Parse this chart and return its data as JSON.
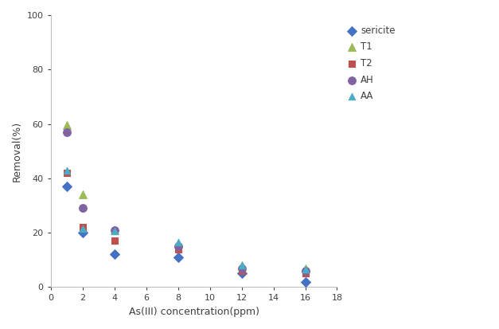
{
  "series": {
    "sericite": {
      "x": [
        1,
        2,
        4,
        8,
        12,
        16
      ],
      "y": [
        37,
        20,
        12,
        11,
        5,
        2
      ],
      "color": "#4472C4",
      "marker": "D",
      "markersize": 6,
      "label": "sericite"
    },
    "T1": {
      "x": [
        1,
        2,
        4,
        8,
        12,
        16
      ],
      "y": [
        59.5,
        34,
        21,
        16,
        8,
        7
      ],
      "color": "#9BBB59",
      "marker": "^",
      "markersize": 7,
      "label": "T1"
    },
    "T2": {
      "x": [
        1,
        2,
        4,
        8,
        12,
        16
      ],
      "y": [
        42,
        22,
        17,
        14,
        6,
        5
      ],
      "color": "#C0504D",
      "marker": "s",
      "markersize": 6,
      "label": "T2"
    },
    "AH": {
      "x": [
        1,
        2,
        4,
        8,
        12,
        16
      ],
      "y": [
        57,
        29,
        21,
        15,
        7,
        6
      ],
      "color": "#8064A2",
      "marker": "o",
      "markersize": 7,
      "label": "AH"
    },
    "AA": {
      "x": [
        1,
        2,
        4,
        8,
        12,
        16
      ],
      "y": [
        43,
        21.5,
        20.5,
        16.5,
        8,
        6.5
      ],
      "color": "#4BACC6",
      "marker": "^",
      "markersize": 6,
      "label": "AA"
    }
  },
  "xlabel": "As(III) concentration(ppm)",
  "ylabel": "Removal(%)",
  "xlim": [
    0,
    18
  ],
  "ylim": [
    0,
    100
  ],
  "xticks": [
    0,
    2,
    4,
    6,
    8,
    10,
    12,
    14,
    16,
    18
  ],
  "yticks": [
    0,
    20,
    40,
    60,
    80,
    100
  ],
  "figsize": [
    6.27,
    4.13
  ],
  "dpi": 100,
  "plot_bg": "#FFFFFF",
  "fig_bg": "#FFFFFF",
  "spine_color": "#C0C0C0",
  "tick_color": "#404040",
  "label_fontsize": 9,
  "tick_fontsize": 8
}
